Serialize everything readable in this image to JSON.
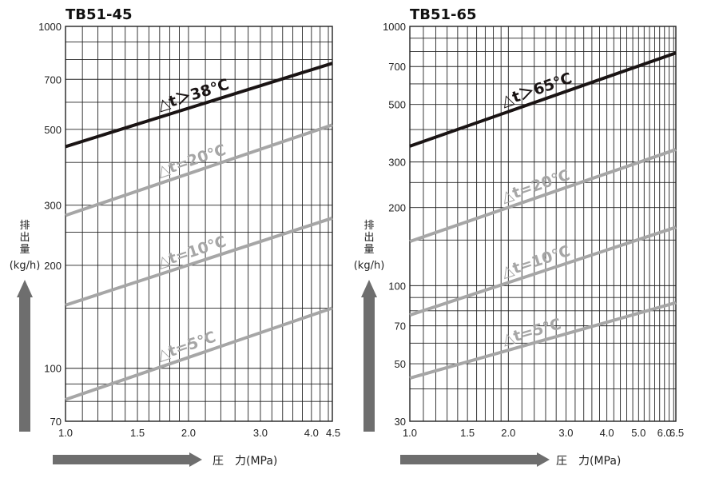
{
  "colors": {
    "hot_line": "#1a1414",
    "line": "#a6a6a6",
    "grid": "#222222",
    "arrow": "#6e6e6e"
  },
  "chart_data": [
    {
      "type": "line",
      "title": "TB51-45",
      "xscale": "log",
      "yscale": "log",
      "xlim": [
        1.0,
        4.5
      ],
      "ylim": [
        70,
        1000
      ],
      "xticks": [
        1.0,
        1.5,
        2.0,
        3.0,
        4.0,
        4.5
      ],
      "xtick_labels": [
        "1.0",
        "1.5",
        "2.0",
        "3.0",
        "4.0",
        "4.5"
      ],
      "yticks": [
        70,
        100,
        200,
        300,
        500,
        700,
        1000
      ],
      "ytick_labels": [
        "70",
        "100",
        "200",
        "300",
        "500",
        "700",
        "1000"
      ],
      "xlabel": "圧　力(MPa)",
      "ylabel": [
        "排",
        "出",
        "量"
      ],
      "ylabel_unit": "(kg/h)",
      "grid": true,
      "series": [
        {
          "name": "△t＞38℃",
          "x": [
            1.0,
            4.5
          ],
          "y": [
            445,
            780
          ]
        },
        {
          "name": "△t=20℃",
          "x": [
            1.0,
            4.5
          ],
          "y": [
            280,
            515
          ]
        },
        {
          "name": "△t=10℃",
          "x": [
            1.0,
            4.5
          ],
          "y": [
            153,
            275
          ]
        },
        {
          "name": "△t=5℃",
          "x": [
            1.0,
            4.5
          ],
          "y": [
            81,
            150
          ]
        }
      ]
    },
    {
      "type": "line",
      "title": "TB51-65",
      "xscale": "log",
      "yscale": "log",
      "xlim": [
        1.0,
        6.5
      ],
      "ylim": [
        30,
        1000
      ],
      "xticks": [
        1.0,
        1.5,
        2.0,
        3.0,
        4.0,
        5.0,
        6.0,
        6.5
      ],
      "xtick_labels": [
        "1.0",
        "1.5",
        "2.0",
        "3.0",
        "4.0",
        "5.0",
        "6.0",
        "6.5"
      ],
      "yticks": [
        30,
        50,
        70,
        100,
        200,
        300,
        500,
        700,
        1000
      ],
      "ytick_labels": [
        "30",
        "50",
        "70",
        "100",
        "200",
        "300",
        "500",
        "700",
        "1000"
      ],
      "xlabel": "圧　力(MPa)",
      "ylabel": [
        "排",
        "出",
        "量"
      ],
      "ylabel_unit": "(kg/h)",
      "grid": true,
      "series": [
        {
          "name": "△t＞65℃",
          "x": [
            1.0,
            6.5
          ],
          "y": [
            345,
            790
          ]
        },
        {
          "name": "△t=20℃",
          "x": [
            1.0,
            6.5
          ],
          "y": [
            148,
            335
          ]
        },
        {
          "name": "△t=10℃",
          "x": [
            1.0,
            6.5
          ],
          "y": [
            77,
            168
          ]
        },
        {
          "name": "△t=5℃",
          "x": [
            1.0,
            6.5
          ],
          "y": [
            44,
            86
          ]
        }
      ]
    }
  ]
}
